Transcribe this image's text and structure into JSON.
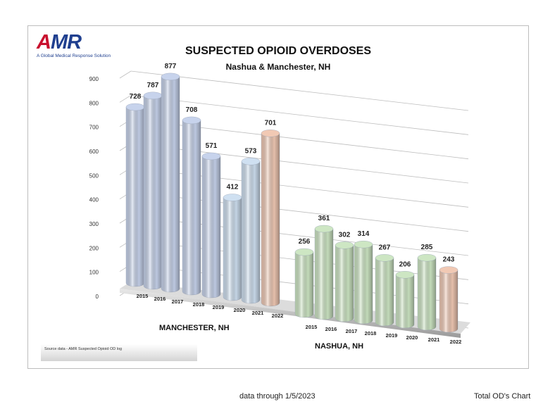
{
  "logo": {
    "text_a": "A",
    "text_mr": "MR",
    "tagline": "A Global Medical Response Solution"
  },
  "footer": {
    "center": "data through 1/5/2023",
    "right": "Total OD's Chart"
  },
  "source_note": "Source data - AMR Suspected Opioid OD log",
  "chart_data": {
    "type": "bar",
    "title": "SUSPECTED OPIOID OVERDOSES",
    "subtitle": "Nashua & Manchester, NH",
    "ylim": [
      0,
      900
    ],
    "yticks": [
      0,
      100,
      200,
      300,
      400,
      500,
      600,
      700,
      800,
      900
    ],
    "grid": true,
    "groups": [
      {
        "name": "MANCHESTER, NH",
        "categories": [
          "2015",
          "2016",
          "2017",
          "2018",
          "2019",
          "2020",
          "2021",
          "2022"
        ],
        "values": [
          728,
          787,
          877,
          708,
          571,
          412,
          573,
          701
        ],
        "colors": [
          "#c7d3ec",
          "#c7d3ec",
          "#c7d3ec",
          "#c7d3ec",
          "#c7d3ec",
          "#cfe0f1",
          "#cfe0f1",
          "#f1c9b4"
        ]
      },
      {
        "name": "NASHUA, NH",
        "categories": [
          "2015",
          "2016",
          "2017",
          "2018",
          "2019",
          "2020",
          "2021",
          "2022"
        ],
        "values": [
          256,
          361,
          302,
          314,
          267,
          206,
          285,
          243
        ],
        "colors": [
          "#cde6c3",
          "#cde6c3",
          "#cde6c3",
          "#cde6c3",
          "#cde6c3",
          "#cde6c3",
          "#cde6c3",
          "#f1c9b4"
        ]
      }
    ]
  }
}
